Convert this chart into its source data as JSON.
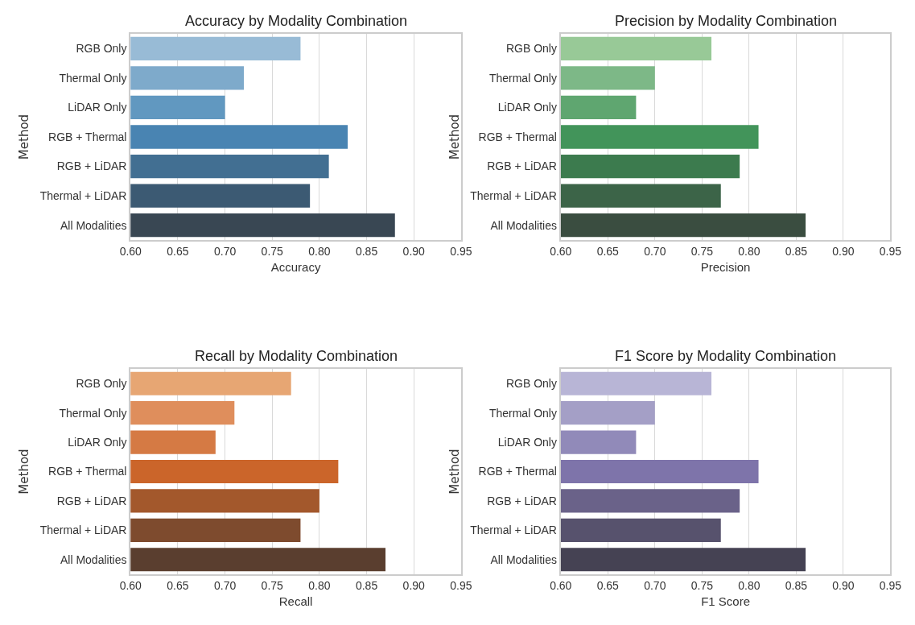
{
  "chart_data": [
    {
      "type": "bar",
      "orientation": "horizontal",
      "title": "Accuracy by Modality Combination",
      "xlabel": "Accuracy",
      "ylabel": "Method",
      "categories": [
        "RGB Only",
        "Thermal Only",
        "LiDAR Only",
        "RGB + Thermal",
        "RGB + LiDAR",
        "Thermal + LiDAR",
        "All Modalities"
      ],
      "values": [
        0.78,
        0.72,
        0.7,
        0.83,
        0.81,
        0.79,
        0.88
      ],
      "colors": [
        "#98bbd6",
        "#7eaacb",
        "#6198c0",
        "#4984b2",
        "#426f92",
        "#3c5a73",
        "#394753"
      ],
      "xlim": [
        0.6,
        0.95
      ],
      "xticks": [
        {
          "value": 0.6,
          "label": "0.60"
        },
        {
          "value": 0.65,
          "label": "0.65"
        },
        {
          "value": 0.7,
          "label": "0.70"
        },
        {
          "value": 0.75,
          "label": "0.75"
        },
        {
          "value": 0.8,
          "label": "0.80"
        },
        {
          "value": 0.85,
          "label": "0.85"
        },
        {
          "value": 0.9,
          "label": "0.90"
        },
        {
          "value": 0.95,
          "label": "0.95"
        }
      ],
      "grid": "x"
    },
    {
      "type": "bar",
      "orientation": "horizontal",
      "title": "Precision by Modality Combination",
      "xlabel": "Precision",
      "ylabel": "Method",
      "categories": [
        "RGB Only",
        "Thermal Only",
        "LiDAR Only",
        "RGB + Thermal",
        "RGB + LiDAR",
        "Thermal + LiDAR",
        "All Modalities"
      ],
      "values": [
        0.76,
        0.7,
        0.68,
        0.81,
        0.79,
        0.77,
        0.86
      ],
      "colors": [
        "#98c997",
        "#7db887",
        "#5fa670",
        "#42945a",
        "#3c7b4e",
        "#3c6448",
        "#3a4d40"
      ],
      "xlim": [
        0.6,
        0.95
      ],
      "xticks": [
        {
          "value": 0.6,
          "label": "0.60"
        },
        {
          "value": 0.65,
          "label": "0.65"
        },
        {
          "value": 0.7,
          "label": "0.70"
        },
        {
          "value": 0.75,
          "label": "0.75"
        },
        {
          "value": 0.8,
          "label": "0.80"
        },
        {
          "value": 0.85,
          "label": "0.85"
        },
        {
          "value": 0.9,
          "label": "0.90"
        },
        {
          "value": 0.95,
          "label": "0.95"
        }
      ],
      "grid": "x"
    },
    {
      "type": "bar",
      "orientation": "horizontal",
      "title": "Recall by Modality Combination",
      "xlabel": "Recall",
      "ylabel": "Method",
      "categories": [
        "RGB Only",
        "Thermal Only",
        "LiDAR Only",
        "RGB + Thermal",
        "RGB + LiDAR",
        "Thermal + LiDAR",
        "All Modalities"
      ],
      "values": [
        0.77,
        0.71,
        0.69,
        0.82,
        0.8,
        0.78,
        0.87
      ],
      "colors": [
        "#e7a673",
        "#df8e5c",
        "#d57a44",
        "#cb652a",
        "#a3582c",
        "#7e4b2e",
        "#5a3e2f"
      ],
      "xlim": [
        0.6,
        0.95
      ],
      "xticks": [
        {
          "value": 0.6,
          "label": "0.60"
        },
        {
          "value": 0.65,
          "label": "0.65"
        },
        {
          "value": 0.7,
          "label": "0.70"
        },
        {
          "value": 0.75,
          "label": "0.75"
        },
        {
          "value": 0.8,
          "label": "0.80"
        },
        {
          "value": 0.85,
          "label": "0.85"
        },
        {
          "value": 0.9,
          "label": "0.90"
        },
        {
          "value": 0.95,
          "label": "0.95"
        }
      ],
      "grid": "x"
    },
    {
      "type": "bar",
      "orientation": "horizontal",
      "title": "F1 Score by Modality Combination",
      "xlabel": "F1 Score",
      "ylabel": "Method",
      "categories": [
        "RGB Only",
        "Thermal Only",
        "LiDAR Only",
        "RGB + Thermal",
        "RGB + LiDAR",
        "Thermal + LiDAR",
        "All Modalities"
      ],
      "values": [
        0.76,
        0.7,
        0.68,
        0.81,
        0.79,
        0.77,
        0.86
      ],
      "colors": [
        "#b8b5d6",
        "#a49fc6",
        "#918ab9",
        "#7e74aa",
        "#6a6289",
        "#57526d",
        "#454253"
      ],
      "xlim": [
        0.6,
        0.95
      ],
      "xticks": [
        {
          "value": 0.6,
          "label": "0.60"
        },
        {
          "value": 0.65,
          "label": "0.65"
        },
        {
          "value": 0.7,
          "label": "0.70"
        },
        {
          "value": 0.75,
          "label": "0.75"
        },
        {
          "value": 0.8,
          "label": "0.80"
        },
        {
          "value": 0.85,
          "label": "0.85"
        },
        {
          "value": 0.9,
          "label": "0.90"
        },
        {
          "value": 0.95,
          "label": "0.95"
        }
      ],
      "grid": "x"
    }
  ]
}
